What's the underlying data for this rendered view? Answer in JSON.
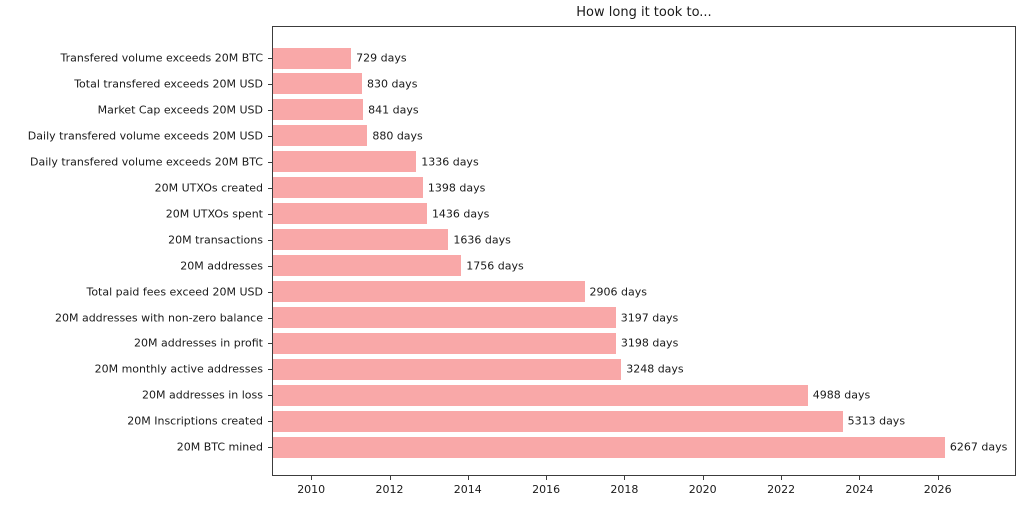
{
  "chart_data": {
    "type": "bar",
    "orientation": "horizontal",
    "title": "How long it took to...",
    "categories": [
      "Transfered volume exceeds 20M BTC",
      "Total transfered exceeds 20M USD",
      "Market Cap exceeds 20M USD",
      "Daily transfered volume exceeds 20M USD",
      "Daily transfered volume exceeds 20M BTC",
      "20M UTXOs created",
      "20M UTXOs spent",
      "20M transactions",
      "20M addresses",
      "Total paid fees exceed 20M USD",
      "20M addresses with non-zero balance",
      "20M addresses in profit",
      "20M monthly active addresses",
      "20M addresses in loss",
      "20M Inscriptions created",
      "20M BTC mined"
    ],
    "values_days": [
      729,
      830,
      841,
      880,
      1336,
      1398,
      1436,
      1636,
      1756,
      2906,
      3197,
      3198,
      3248,
      4988,
      5313,
      6267
    ],
    "value_labels": [
      "729 days",
      "830 days",
      "841 days",
      "880 days",
      "1336 days",
      "1398 days",
      "1436 days",
      "1636 days",
      "1756 days",
      "2906 days",
      "3197 days",
      "3198 days",
      "3248 days",
      "4988 days",
      "5313 days",
      "6267 days"
    ],
    "x_axis": {
      "tick_labels": [
        "2010",
        "2012",
        "2014",
        "2016",
        "2018",
        "2020",
        "2022",
        "2024",
        "2026"
      ],
      "range_years": [
        2009.0,
        2028.0
      ],
      "days_per_year": 365.25
    },
    "grid": false,
    "legend": null,
    "bar_color": "#f9a8a8",
    "text_color": "#1a1a1a",
    "axis_color": "#3c3c3c"
  }
}
